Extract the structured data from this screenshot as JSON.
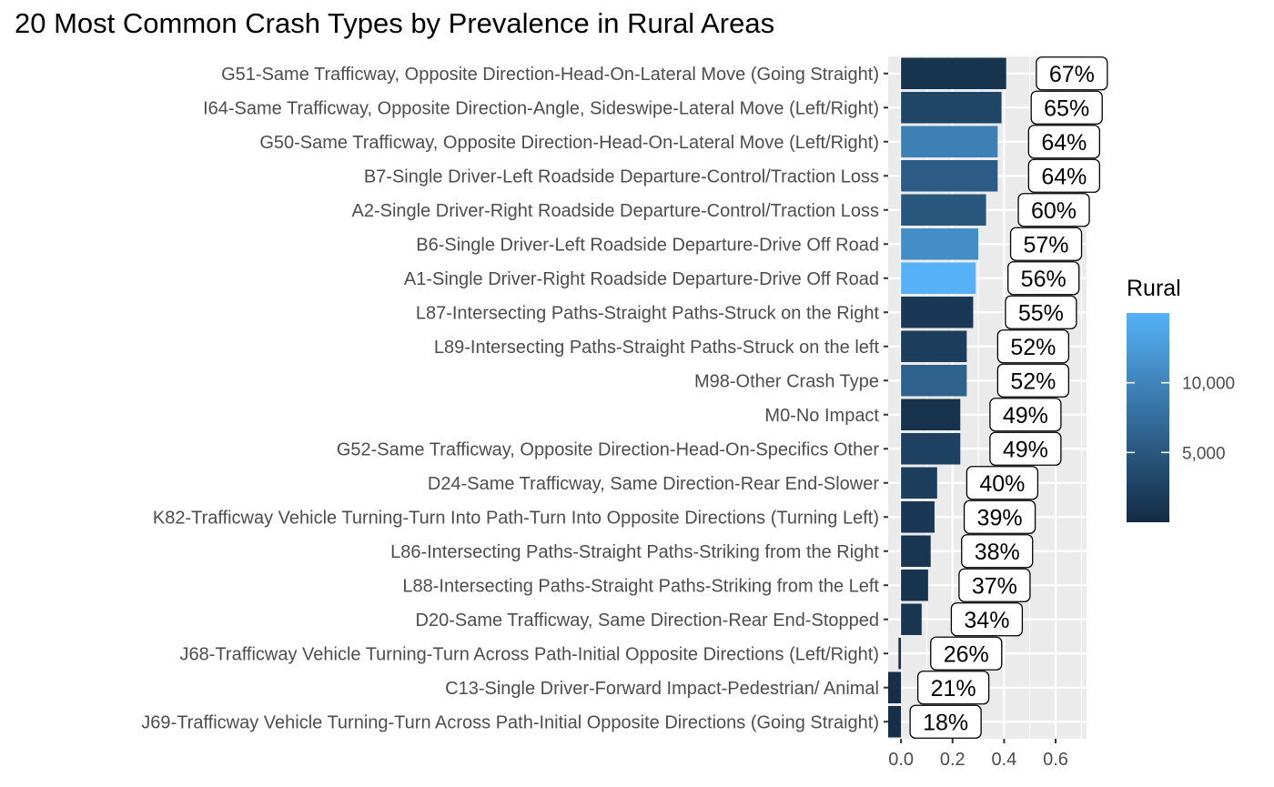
{
  "chart_data": {
    "type": "bar",
    "orientation": "horizontal",
    "title": "20 Most Common Crash Types by Prevalence in Rural Areas",
    "xlabel": "",
    "ylabel": "",
    "xlim": [
      -0.05,
      0.72
    ],
    "x_ticks": [
      0.0,
      0.2,
      0.4,
      0.6
    ],
    "x_tick_labels": [
      "0.0",
      "0.2",
      "0.4",
      "0.6"
    ],
    "grid": true,
    "categories": [
      "G51-Same Trafficway, Opposite Direction-Head-On-Lateral Move (Going Straight)",
      "I64-Same Trafficway, Opposite Direction-Angle, Sideswipe-Lateral Move (Left/Right)",
      "G50-Same Trafficway, Opposite Direction-Head-On-Lateral Move (Left/Right)",
      "B7-Single Driver-Left Roadside Departure-Control/Traction Loss",
      "A2-Single Driver-Right Roadside Departure-Control/Traction Loss",
      "B6-Single Driver-Left Roadside Departure-Drive Off Road",
      "A1-Single Driver-Right Roadside Departure-Drive Off Road",
      "L87-Intersecting Paths-Straight Paths-Struck on the Right",
      "L89-Intersecting Paths-Straight Paths-Struck on the left",
      "M98-Other Crash Type",
      "M0-No Impact",
      "G52-Same Trafficway, Opposite Direction-Head-On-Specifics Other",
      "D24-Same Trafficway, Same Direction-Rear End-Slower",
      "K82-Trafficway Vehicle Turning-Turn Into Path-Turn Into Opposite Directions (Turning Left)",
      "L86-Intersecting Paths-Straight Paths-Striking from the Right",
      "L88-Intersecting Paths-Straight Paths-Striking from the Left",
      "D20-Same Trafficway, Same Direction-Rear End-Stopped",
      "J68-Trafficway Vehicle Turning-Turn Across Path-Initial Opposite Directions (Left/Right)",
      "C13-Single Driver-Forward Impact-Pedestrian/ Animal",
      "J69-Trafficway Vehicle Turning-Turn Across Path-Initial Opposite Directions (Going Straight)"
    ],
    "values": [
      0.408,
      0.39,
      0.375,
      0.375,
      0.33,
      0.3,
      0.29,
      0.28,
      0.255,
      0.255,
      0.23,
      0.23,
      0.14,
      0.13,
      0.115,
      0.105,
      0.08,
      -0.01,
      -0.05,
      -0.05
    ],
    "data_labels": [
      "67%",
      "65%",
      "64%",
      "64%",
      "60%",
      "57%",
      "56%",
      "55%",
      "52%",
      "52%",
      "49%",
      "49%",
      "40%",
      "39%",
      "38%",
      "37%",
      "34%",
      "26%",
      "21%",
      "18%"
    ],
    "label_x": [
      0.67,
      0.65,
      0.64,
      0.64,
      0.6,
      0.57,
      0.56,
      0.55,
      0.52,
      0.52,
      0.49,
      0.49,
      0.4,
      0.39,
      0.38,
      0.37,
      0.34,
      0.26,
      0.21,
      0.18
    ],
    "fill_values": [
      1000,
      3000,
      9500,
      5500,
      5000,
      11000,
      15000,
      1500,
      2000,
      6000,
      800,
      2500,
      2000,
      1500,
      1200,
      1000,
      1200,
      800,
      500,
      500
    ],
    "legend": {
      "title": "Rural",
      "placement": "right",
      "range": [
        0,
        15000
      ],
      "ticks": [
        5000,
        10000
      ],
      "tick_labels": [
        "5,000",
        "10,000"
      ],
      "color_low": "#132B43",
      "color_high": "#56B1F7"
    },
    "colors": {
      "panel_bg": "#ebebeb",
      "grid": "#ffffff"
    }
  }
}
